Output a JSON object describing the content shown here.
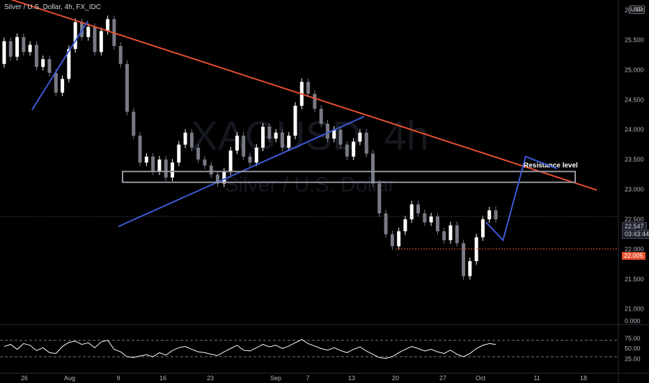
{
  "header": {
    "title": "Silver / U.S. Dollar, 4h, FX_IDC",
    "currency": "USD"
  },
  "watermark": {
    "symbol": "XAGUSD, 4h",
    "name": "Silver / U.S. Dollar"
  },
  "price_labels": {
    "last_price": "22.547",
    "countdown": "03:43:44",
    "support_price": "22.005"
  },
  "annotations": {
    "resistance_label": "Resistance level"
  },
  "colors": {
    "background": "#000000",
    "up_candle": "#ffffff",
    "down_candle": "#787b86",
    "trendline_main": "#e8502e",
    "trendline_support": "#3f5bd8",
    "projection": "#3f5bd8",
    "zone_border": "#9598a1",
    "support_dotted": "#e8502e",
    "rsi_line": "#ffffff",
    "text": "#b2b5be"
  },
  "chart_data": [
    {
      "type": "candlestick",
      "title": "",
      "xlabel": "",
      "ylabel": "",
      "ylim": [
        20.88,
        26.1
      ],
      "price_ticks": [
        21.0,
        21.5,
        22.0,
        22.5,
        23.0,
        23.5,
        24.0,
        24.5,
        25.0,
        25.5,
        26.0
      ],
      "price_tick_labels": [
        "21.000",
        "21.500",
        "22.000",
        "22.500",
        "23.000",
        "23.500",
        "24.000",
        "24.500",
        "25.000",
        "25.500",
        "26.000"
      ],
      "x_tick_labels": [
        "26",
        "Aug",
        "9",
        "16",
        "23",
        "Sep",
        "7",
        "13",
        "20",
        "27",
        "Oct",
        "11",
        "18"
      ],
      "series": [
        {
          "values": [
            [
              25.1,
              25.48
            ],
            [
              25.48,
              25.22
            ],
            [
              25.22,
              25.55
            ],
            [
              25.55,
              25.3
            ],
            [
              25.3,
              25.42
            ],
            [
              25.42,
              25.05
            ],
            [
              25.05,
              25.18
            ],
            [
              25.18,
              24.95
            ],
            [
              24.95,
              24.62
            ],
            [
              24.62,
              24.85
            ],
            [
              24.85,
              25.35
            ],
            [
              25.35,
              25.8
            ],
            [
              25.8,
              25.55
            ],
            [
              25.55,
              25.72
            ],
            [
              25.72,
              25.3
            ],
            [
              25.3,
              25.65
            ],
            [
              25.65,
              25.85
            ],
            [
              25.85,
              25.4
            ],
            [
              25.4,
              25.1
            ],
            [
              25.1,
              24.3
            ],
            [
              24.3,
              23.9
            ],
            [
              23.9,
              23.45
            ],
            [
              23.45,
              23.55
            ],
            [
              23.55,
              23.3
            ],
            [
              23.3,
              23.5
            ],
            [
              23.5,
              23.2
            ],
            [
              23.2,
              23.45
            ],
            [
              23.45,
              23.75
            ],
            [
              23.75,
              23.95
            ],
            [
              23.95,
              23.7
            ],
            [
              23.7,
              23.5
            ],
            [
              23.5,
              23.4
            ],
            [
              23.4,
              23.25
            ],
            [
              23.25,
              23.1
            ],
            [
              23.1,
              23.3
            ],
            [
              23.3,
              23.65
            ],
            [
              23.65,
              23.9
            ],
            [
              23.9,
              23.55
            ],
            [
              23.55,
              23.45
            ],
            [
              23.45,
              23.7
            ],
            [
              23.7,
              24.05
            ],
            [
              24.05,
              23.85
            ],
            [
              23.85,
              23.95
            ],
            [
              23.95,
              23.7
            ],
            [
              23.7,
              23.9
            ],
            [
              23.9,
              24.4
            ],
            [
              24.4,
              24.8
            ],
            [
              24.8,
              24.6
            ],
            [
              24.6,
              24.35
            ],
            [
              24.35,
              24.1
            ],
            [
              24.1,
              23.85
            ],
            [
              23.85,
              24.0
            ],
            [
              24.0,
              23.75
            ],
            [
              23.75,
              23.55
            ],
            [
              23.55,
              23.8
            ],
            [
              23.8,
              23.95
            ],
            [
              23.95,
              23.6
            ],
            [
              23.6,
              23.1
            ],
            [
              23.1,
              22.6
            ],
            [
              22.6,
              22.25
            ],
            [
              22.25,
              22.05
            ],
            [
              22.05,
              22.3
            ],
            [
              22.3,
              22.5
            ],
            [
              22.5,
              22.75
            ],
            [
              22.75,
              22.6
            ],
            [
              22.6,
              22.45
            ],
            [
              22.45,
              22.55
            ],
            [
              22.55,
              22.3
            ],
            [
              22.3,
              22.15
            ],
            [
              22.15,
              22.4
            ],
            [
              22.4,
              22.1
            ],
            [
              22.1,
              21.55
            ],
            [
              21.55,
              21.8
            ],
            [
              21.8,
              22.2
            ],
            [
              22.2,
              22.5
            ],
            [
              22.5,
              22.65
            ],
            [
              22.65,
              22.5
            ]
          ],
          "name": ""
        }
      ],
      "trendlines": [
        {
          "role": "descending resistance",
          "from": [
            "Jul 22",
            26.27
          ],
          "to": [
            "Oct 21",
            22.99
          ]
        },
        {
          "role": "rising support (Jul)",
          "from": [
            "Jul 27",
            24.33
          ],
          "to": [
            "Aug 4",
            25.82
          ]
        },
        {
          "role": "rising support (Aug-Sep)",
          "from": [
            "Aug 9",
            22.38
          ],
          "to": [
            "Sep 15",
            24.22
          ]
        }
      ],
      "zones": [
        {
          "label": "Resistance level",
          "low": 23.12,
          "high": 23.3
        }
      ],
      "levels": [
        {
          "value": 22.005,
          "style": "dotted"
        }
      ],
      "projection_path": [
        [
          "Oct 3",
          22.45
        ],
        [
          "Oct 6",
          22.15
        ],
        [
          "Oct 10",
          23.55
        ],
        [
          "Oct 15",
          23.35
        ]
      ],
      "last_price": 22.547
    },
    {
      "type": "line",
      "title": "",
      "xlabel": "",
      "ylabel": "",
      "ylim": [
        0,
        100
      ],
      "y_tick_labels": [
        "75.00",
        "50.00",
        "25.00",
        "0.000"
      ],
      "y_ticks": [
        75,
        50,
        25,
        0
      ],
      "reference_lines": [
        70,
        30
      ],
      "series": [
        {
          "values": [
            55,
            60,
            48,
            62,
            58,
            45,
            52,
            40,
            38,
            55,
            65,
            68,
            60,
            64,
            52,
            66,
            70,
            48,
            42,
            30,
            28,
            32,
            35,
            30,
            40,
            34,
            45,
            52,
            55,
            48,
            42,
            40,
            36,
            33,
            42,
            50,
            58,
            46,
            44,
            52,
            60,
            54,
            58,
            50,
            56,
            64,
            72,
            62,
            56,
            50,
            46,
            52,
            45,
            40,
            48,
            54,
            44,
            36,
            28,
            26,
            30,
            40,
            48,
            55,
            50,
            44,
            48,
            42,
            38,
            46,
            36,
            30,
            38,
            50,
            58,
            62,
            60
          ],
          "name": ""
        }
      ]
    }
  ]
}
